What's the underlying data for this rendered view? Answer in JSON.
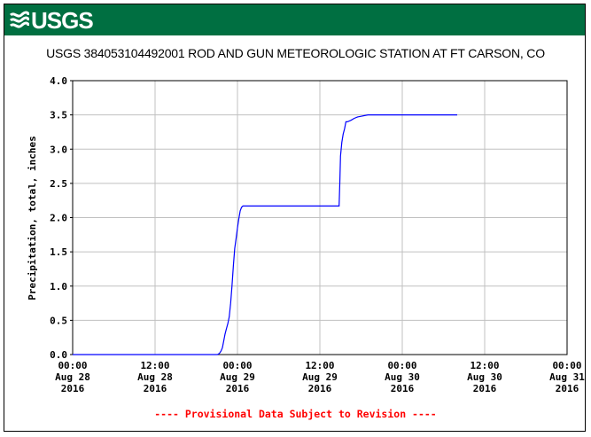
{
  "header": {
    "logo_text": "USGS",
    "title": "USGS 384053104492001 ROD AND GUN METEOROLOGIC STATION AT FT CARSON, CO"
  },
  "colors": {
    "banner": "#006f41",
    "line": "#0000ff",
    "grid": "#c0c0c0",
    "note": "#ff0000"
  },
  "chart_data": {
    "type": "line",
    "title": "USGS 384053104492001 ROD AND GUN METEOROLOGIC STATION AT FT CARSON, CO",
    "ylabel": "Precipitation, total, inches",
    "xlabel": "",
    "ylim": [
      0,
      4.0
    ],
    "xlim": [
      0,
      72
    ],
    "grid": true,
    "y_ticks": [
      "0.0",
      "0.5",
      "1.0",
      "1.5",
      "2.0",
      "2.5",
      "3.0",
      "3.5",
      "4.0"
    ],
    "x_ticks": [
      {
        "x": 0,
        "line1": "00:00",
        "line2": "Aug 28",
        "line3": "2016"
      },
      {
        "x": 12,
        "line1": "12:00",
        "line2": "Aug 28",
        "line3": "2016"
      },
      {
        "x": 24,
        "line1": "00:00",
        "line2": "Aug 29",
        "line3": "2016"
      },
      {
        "x": 36,
        "line1": "12:00",
        "line2": "Aug 29",
        "line3": "2016"
      },
      {
        "x": 48,
        "line1": "00:00",
        "line2": "Aug 30",
        "line3": "2016"
      },
      {
        "x": 60,
        "line1": "12:00",
        "line2": "Aug 30",
        "line3": "2016"
      },
      {
        "x": 72,
        "line1": "00:00",
        "line2": "Aug 31",
        "line3": "2016"
      }
    ],
    "series": [
      {
        "x": [
          0,
          21.1,
          21.4,
          21.6,
          21.8,
          22.0,
          22.2,
          22.4,
          22.6,
          22.8,
          23.0,
          23.2,
          23.4,
          23.6,
          23.8,
          24.0,
          24.2,
          24.4,
          24.6,
          24.8,
          25.0,
          25.2,
          25.4,
          25.6,
          25.8,
          26.0,
          26.5,
          27.0,
          30.0,
          35.0,
          38.8,
          38.9,
          39.0,
          39.2,
          39.4,
          39.6,
          39.8,
          40.0,
          40.5,
          41.0,
          41.5,
          42.0,
          42.5,
          43.0,
          45.0,
          50.0,
          56.0
        ],
        "y": [
          0.0,
          0.0,
          0.02,
          0.05,
          0.1,
          0.2,
          0.3,
          0.38,
          0.45,
          0.55,
          0.75,
          1.0,
          1.3,
          1.55,
          1.7,
          1.85,
          1.98,
          2.1,
          2.15,
          2.17,
          2.17,
          2.17,
          2.17,
          2.17,
          2.17,
          2.17,
          2.17,
          2.17,
          2.17,
          2.17,
          2.17,
          2.5,
          2.9,
          3.1,
          3.22,
          3.3,
          3.4,
          3.4,
          3.42,
          3.45,
          3.47,
          3.48,
          3.49,
          3.5,
          3.5,
          3.5,
          3.5
        ]
      }
    ]
  },
  "footer": {
    "note": "---- Provisional Data Subject to Revision ----"
  }
}
